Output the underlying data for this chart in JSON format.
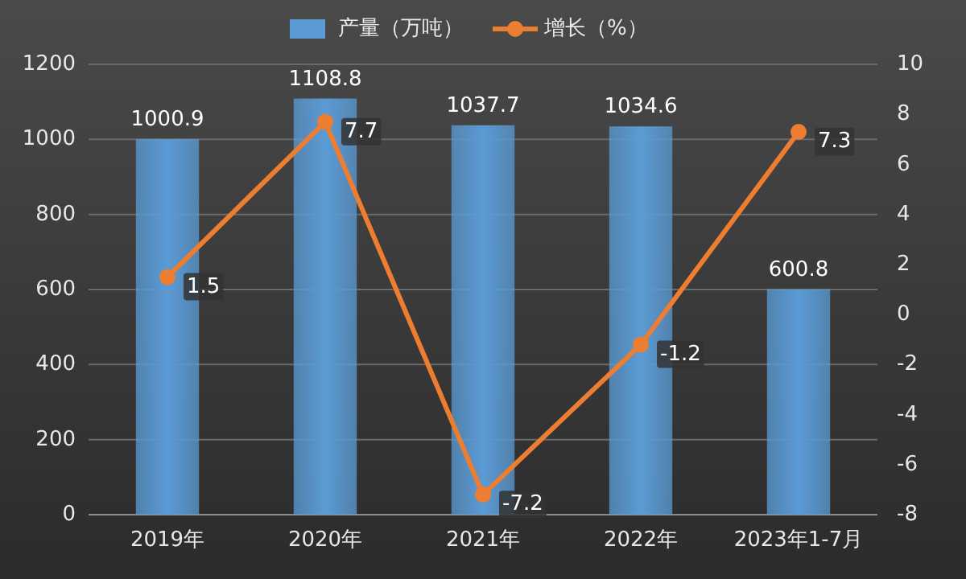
{
  "chart_data": {
    "type": "bar",
    "categories": [
      "2019年",
      "2020年",
      "2021年",
      "2022年",
      "2023年1-7月"
    ],
    "series": [
      {
        "name": "产量（万吨）",
        "color": "#5b9bd5",
        "values": [
          1000.9,
          1108.8,
          1037.7,
          1034.6,
          600.8
        ]
      },
      {
        "name": "增长（%）",
        "type": "line",
        "axis": "y2",
        "color": "#ed7d31",
        "values": [
          1.5,
          7.7,
          -7.2,
          -1.2,
          7.3
        ]
      }
    ],
    "ylim": [
      0,
      1200
    ],
    "yticks": [
      0,
      200,
      400,
      600,
      800,
      1000,
      1200
    ],
    "y2lim": [
      -8,
      10
    ],
    "y2ticks": [
      -8,
      -6,
      -4,
      -2,
      0,
      2,
      4,
      6,
      8,
      10
    ],
    "grid": "y",
    "legend": "top",
    "marker": "circle",
    "line_style": "solid",
    "data_labels": true
  }
}
